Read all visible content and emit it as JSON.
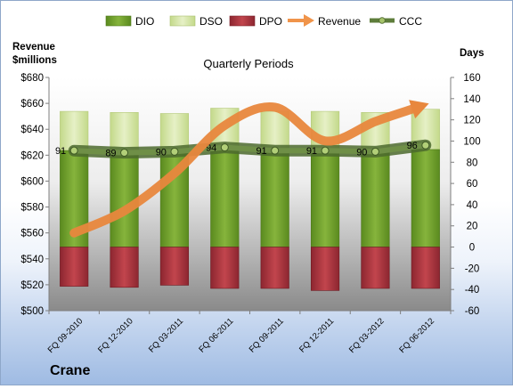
{
  "chart_data": {
    "type": "bar",
    "title": "Quarterly Periods",
    "company": "Crane",
    "left_axis_label": [
      "Revenue",
      "$millions"
    ],
    "right_axis_label": "Days",
    "categories": [
      "FQ 09-2010",
      "FQ 12-2010",
      "FQ 03-2011",
      "FQ 06-2011",
      "FQ 09-2011",
      "FQ 12-2011",
      "FQ 03-2012",
      "FQ 06-2012"
    ],
    "left_axis": {
      "min": 500,
      "max": 680,
      "step": 20,
      "prefix": "$"
    },
    "right_axis": {
      "min": -60,
      "max": 160,
      "step": 20
    },
    "series": [
      {
        "name": "DIO",
        "type": "stacked-bar",
        "axis": "right",
        "color": "#6f9a2c",
        "values": [
          91,
          91,
          90,
          95,
          91,
          92,
          90,
          92
        ]
      },
      {
        "name": "DSO",
        "type": "stacked-bar",
        "axis": "right",
        "color": "#d6e6a8",
        "values": [
          37,
          36,
          36,
          36,
          37,
          36,
          37,
          38
        ]
      },
      {
        "name": "DPO",
        "type": "stacked-bar-negative",
        "axis": "right",
        "color": "#a8323b",
        "values": [
          -37,
          -38,
          -36,
          -39,
          -39,
          -41,
          -39,
          -39
        ]
      },
      {
        "name": "Revenue",
        "type": "line-arrow",
        "axis": "left",
        "color": "#f0944a",
        "values": [
          560,
          577,
          606,
          643,
          657,
          631,
          646,
          659
        ]
      },
      {
        "name": "CCC",
        "type": "line-markers",
        "axis": "right",
        "color": "#5e7d3b",
        "values": [
          91,
          89,
          90,
          94,
          91,
          91,
          90,
          96
        ]
      }
    ],
    "data_labels": [
      "91",
      "89",
      "90",
      "94",
      "91",
      "91",
      "90",
      "96"
    ]
  }
}
